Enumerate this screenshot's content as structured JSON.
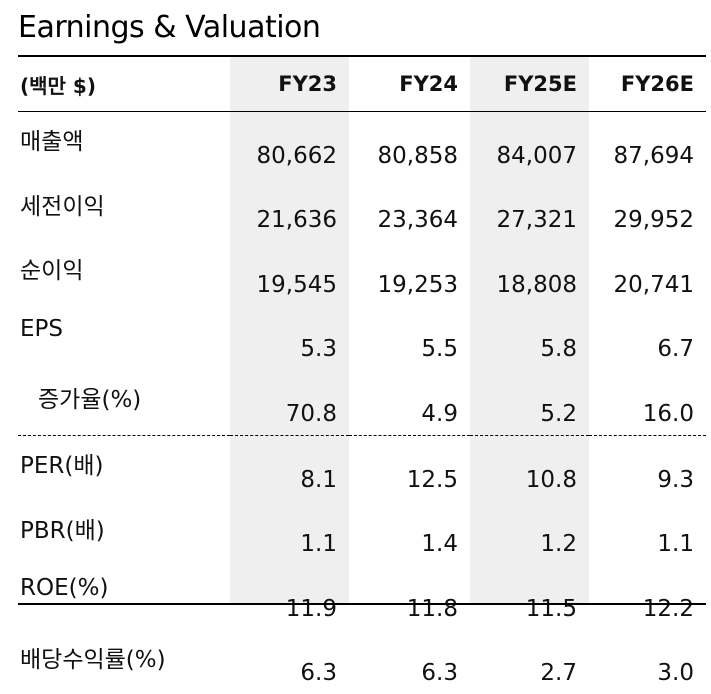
{
  "title": "Earnings & Valuation",
  "table": {
    "unit_label": "(백만 $)",
    "columns": [
      "FY23",
      "FY24",
      "FY25E",
      "FY26E"
    ],
    "rows": [
      {
        "label": "매출액",
        "values": [
          "80,662",
          "80,858",
          "84,007",
          "87,694"
        ]
      },
      {
        "label": "세전이익",
        "values": [
          "21,636",
          "23,364",
          "27,321",
          "29,952"
        ]
      },
      {
        "label": "순이익",
        "values": [
          "19,545",
          "19,253",
          "18,808",
          "20,741"
        ]
      },
      {
        "label": "EPS",
        "values": [
          "5.3",
          "5.5",
          "5.8",
          "6.7"
        ]
      },
      {
        "label": "증가율(%)",
        "values": [
          "70.8",
          "4.9",
          "5.2",
          "16.0"
        ]
      },
      {
        "label": "PER(배)",
        "values": [
          "8.1",
          "12.5",
          "10.8",
          "9.3"
        ]
      },
      {
        "label": "PBR(배)",
        "values": [
          "1.1",
          "1.4",
          "1.2",
          "1.1"
        ]
      },
      {
        "label": "ROE(%)",
        "values": [
          "11.9",
          "11.8",
          "11.5",
          "12.2"
        ]
      },
      {
        "label": "배당수익률(%)",
        "values": [
          "6.3",
          "6.3",
          "2.7",
          "3.0"
        ]
      }
    ]
  }
}
